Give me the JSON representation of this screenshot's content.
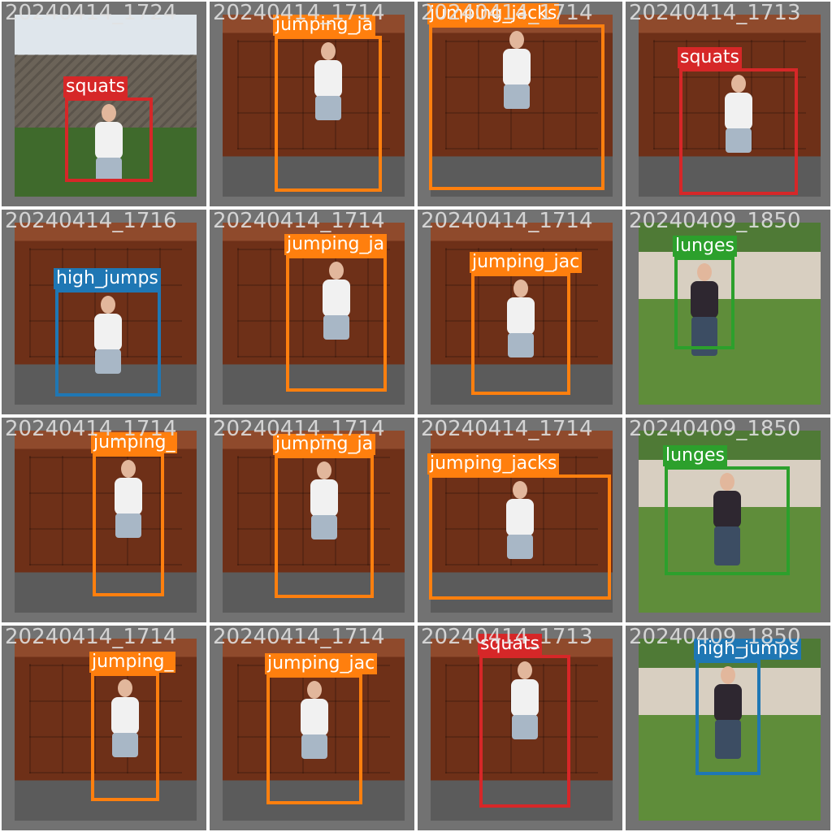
{
  "colors": {
    "squats": "#d62728",
    "jumping_jacks": "#ff7f0e",
    "high_jumps": "#1f77b4",
    "lunges": "#2ca02c",
    "tile_border": "#727272"
  },
  "tiles": [
    {
      "filename": "20240414_1724",
      "scene": "wall",
      "box_label": "squats",
      "class": "squats",
      "pose": "squat"
    },
    {
      "filename": "20240414_1714",
      "scene": "garage",
      "box_label": "jumping_ja",
      "class": "jumping_jacks",
      "pose": "jump"
    },
    {
      "filename": "20240414_1714",
      "scene": "garage",
      "box_label": "jumping_jacks",
      "class": "jumping_jacks",
      "pose": "star"
    },
    {
      "filename": "20240414_1713",
      "scene": "garage",
      "box_label": "squats",
      "class": "squats",
      "pose": "squat"
    },
    {
      "filename": "20240414_1716",
      "scene": "garage",
      "box_label": "high_jumps",
      "class": "high_jumps",
      "pose": "crouch"
    },
    {
      "filename": "20240414_1714",
      "scene": "garage",
      "box_label": "jumping_ja",
      "class": "jumping_jacks",
      "pose": "jump"
    },
    {
      "filename": "20240414_1714",
      "scene": "garage",
      "box_label": "jumping_jac",
      "class": "jumping_jacks",
      "pose": "stand"
    },
    {
      "filename": "20240409_1850",
      "scene": "yard",
      "box_label": "lunges",
      "class": "lunges",
      "pose": "lunge"
    },
    {
      "filename": "20240414_1714",
      "scene": "garage",
      "box_label": "jumping_",
      "class": "jumping_jacks",
      "pose": "side"
    },
    {
      "filename": "20240414_1714",
      "scene": "garage",
      "box_label": "jumping_ja",
      "class": "jumping_jacks",
      "pose": "stand"
    },
    {
      "filename": "20240414_1714",
      "scene": "garage",
      "box_label": "jumping_jacks",
      "class": "jumping_jacks",
      "pose": "arms"
    },
    {
      "filename": "20240409_1850",
      "scene": "yard",
      "box_label": "lunges",
      "class": "lunges",
      "pose": "lunge"
    },
    {
      "filename": "20240414_1714",
      "scene": "garage",
      "box_label": "jumping_",
      "class": "jumping_jacks",
      "pose": "side"
    },
    {
      "filename": "20240414_1714",
      "scene": "garage",
      "box_label": "jumping_jac",
      "class": "jumping_jacks",
      "pose": "stand"
    },
    {
      "filename": "20240414_1713",
      "scene": "garage",
      "box_label": "squats",
      "class": "squats",
      "pose": "squat"
    },
    {
      "filename": "20240409_1850",
      "scene": "yard",
      "box_label": "high_jumps",
      "class": "high_jumps",
      "pose": "stand"
    }
  ]
}
